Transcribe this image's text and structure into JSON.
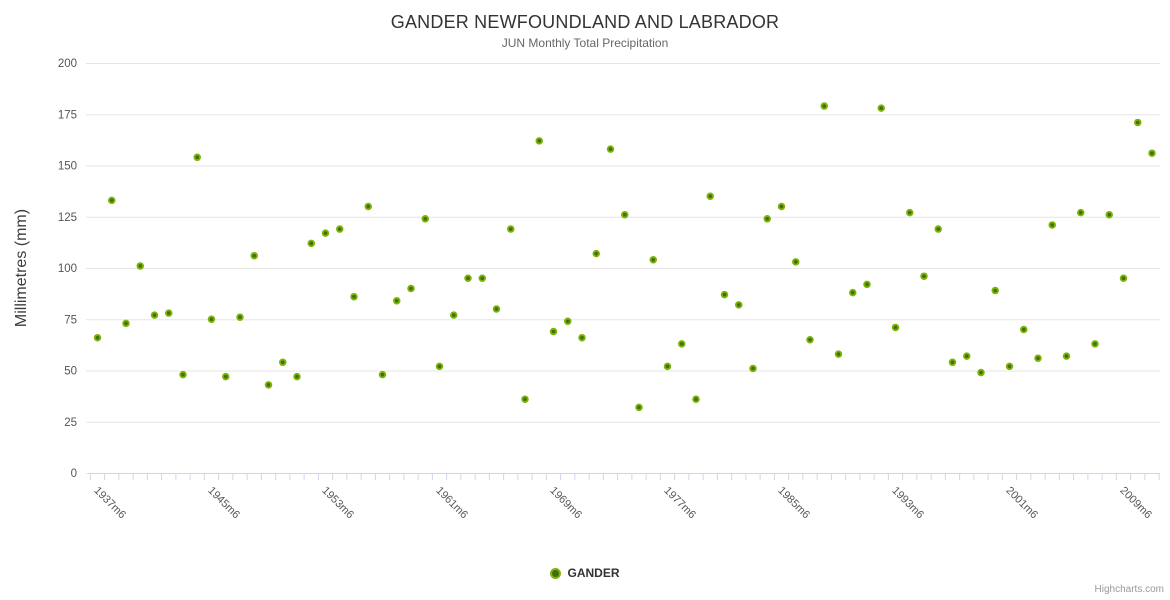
{
  "chart_data": {
    "type": "scatter",
    "title": "GANDER NEWFOUNDLAND AND LABRADOR",
    "subtitle": "JUN Monthly Total Precipitation",
    "ylabel": "Millimetres (mm)",
    "ylim": [
      0,
      200
    ],
    "ytick_interval": 25,
    "yticks": [
      0,
      25,
      50,
      75,
      100,
      125,
      150,
      175,
      200
    ],
    "grid": "horizontal",
    "legend_position": "bottom-center",
    "xtick_labels": [
      "1937m6",
      "1945m6",
      "1953m6",
      "1961m6",
      "1969m6",
      "1977m6",
      "1985m6",
      "1993m6",
      "2001m6",
      "2009m6"
    ],
    "x_suffix": "m6",
    "years": [
      1937,
      1938,
      1939,
      1940,
      1941,
      1942,
      1943,
      1944,
      1945,
      1946,
      1947,
      1948,
      1949,
      1950,
      1951,
      1952,
      1953,
      1954,
      1955,
      1956,
      1957,
      1958,
      1959,
      1960,
      1961,
      1962,
      1963,
      1964,
      1965,
      1966,
      1967,
      1968,
      1969,
      1970,
      1971,
      1972,
      1973,
      1974,
      1975,
      1976,
      1977,
      1978,
      1979,
      1980,
      1981,
      1982,
      1983,
      1984,
      1985,
      1986,
      1987,
      1988,
      1989,
      1990,
      1991,
      1992,
      1993,
      1994,
      1995,
      1996,
      1997,
      1998,
      1999,
      2000,
      2001,
      2002,
      2003,
      2004,
      2005,
      2006,
      2007,
      2008,
      2009,
      2010,
      2011
    ],
    "series": [
      {
        "name": "GANDER",
        "values": [
          66,
          133,
          73,
          101,
          77,
          78,
          48,
          154,
          75,
          47,
          76,
          106,
          43,
          54,
          47,
          112,
          117,
          119,
          86,
          130,
          48,
          84,
          90,
          124,
          52,
          77,
          95,
          95,
          80,
          119,
          36,
          162,
          69,
          74,
          66,
          107,
          158,
          126,
          32,
          104,
          52,
          63,
          36,
          135,
          87,
          82,
          51,
          124,
          130,
          103,
          65,
          179,
          58,
          88,
          92,
          178,
          71,
          127,
          96,
          119,
          54,
          57,
          49,
          89,
          52,
          70,
          56,
          121,
          57,
          127,
          63,
          126,
          95,
          171,
          156
        ]
      }
    ],
    "colors": {
      "marker_fill": "#40700a",
      "marker_stroke": "#7eb307",
      "grid_line": "#e6e6e6",
      "axis_line": "#ccd6eb",
      "tick_label": "#555555",
      "title": "#333333",
      "subtitle": "#666666",
      "y_title": "#3c3c3c",
      "legend_text": "#333333",
      "credits_text": "#999999"
    },
    "credits": "Highcharts.com"
  }
}
